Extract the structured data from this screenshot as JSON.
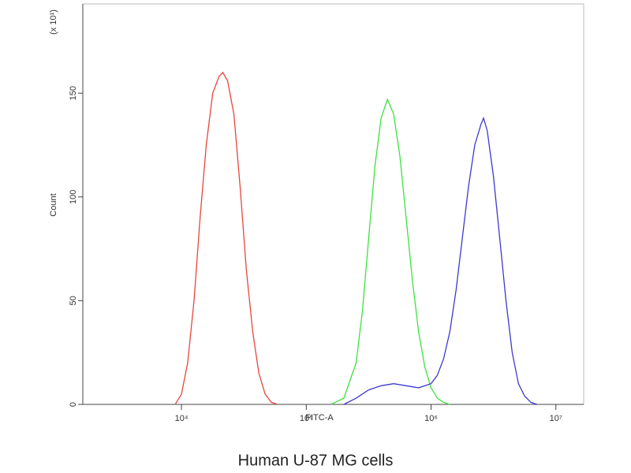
{
  "chart_data": {
    "type": "line",
    "title": "Human U-87 MG cells",
    "x_label": "FITC-A",
    "y_label": "Count",
    "y_scale_label": "(x 10¹)",
    "x_log_scale": true,
    "xlim": [
      1620,
      16700000
    ],
    "xticks": [
      {
        "value": 10000,
        "label": "10⁴"
      },
      {
        "value": 100000,
        "label": "10⁵"
      },
      {
        "value": 1000000,
        "label": "10⁶"
      },
      {
        "value": 10000000,
        "label": "10⁷"
      }
    ],
    "ylim": [
      0,
      193
    ],
    "yticks": [
      0,
      50,
      100,
      150
    ],
    "series": [
      {
        "color": "#e8453c",
        "x": [
          8900,
          10000,
          11200,
          12600,
          14100,
          15800,
          17800,
          20000,
          21400,
          23400,
          26300,
          29500,
          33100,
          37200,
          41700,
          46800,
          52500,
          58900
        ],
        "values": [
          0,
          5,
          20,
          50,
          90,
          125,
          150,
          158,
          160,
          156,
          140,
          105,
          65,
          35,
          15,
          5,
          1,
          0
        ]
      },
      {
        "color": "#3fe03f",
        "x": [
          158000,
          200000,
          251000,
          282000,
          316000,
          355000,
          398000,
          447000,
          501000,
          562000,
          631000,
          708000,
          794000,
          891000,
          1000000,
          1122000,
          1259000,
          1413000
        ],
        "values": [
          0,
          3,
          20,
          45,
          80,
          115,
          138,
          147,
          140,
          120,
          90,
          60,
          35,
          18,
          8,
          3,
          1,
          0
        ]
      },
      {
        "color": "#3a3ad0",
        "x": [
          200000,
          251000,
          316000,
          398000,
          501000,
          631000,
          794000,
          1000000,
          1122000,
          1259000,
          1413000,
          1585000,
          1778000,
          1995000,
          2239000,
          2512000,
          2630000,
          2818000,
          3162000,
          3548000,
          3981000,
          4467000,
          5012000,
          5623000,
          6310000,
          7079000
        ],
        "values": [
          0,
          3,
          7,
          9,
          10,
          9,
          8,
          10,
          14,
          22,
          35,
          55,
          80,
          105,
          125,
          135,
          138,
          132,
          110,
          80,
          50,
          25,
          10,
          4,
          1,
          0
        ]
      }
    ]
  }
}
